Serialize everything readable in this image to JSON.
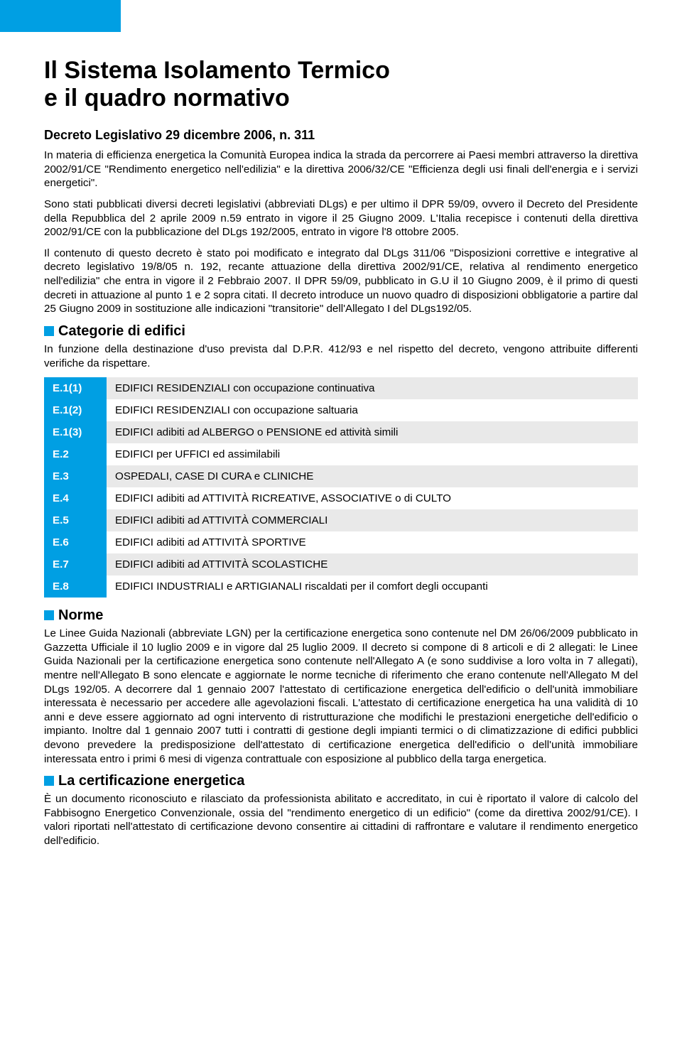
{
  "colors": {
    "accent": "#009fe3",
    "zebra_odd": "#e9e9e9",
    "zebra_even": "#ffffff",
    "text": "#000000",
    "background": "#ffffff"
  },
  "typography": {
    "h1_fontsize": 34,
    "subtitle_fontsize": 18,
    "body_fontsize": 15.2,
    "section_head_fontsize": 20,
    "font_family": "Arial"
  },
  "title_line1": "Il Sistema Isolamento Termico",
  "title_line2": "e il quadro normativo",
  "subtitle": "Decreto Legislativo 29 dicembre 2006, n. 311",
  "intro_p1": "In materia di efficienza energetica la Comunità Europea indica la strada da percorrere ai Paesi membri attraverso la direttiva 2002/91/CE \"Rendimento energetico nell'edilizia\" e la direttiva 2006/32/CE \"Efficienza degli usi finali dell'energia e i servizi energetici\".",
  "intro_p2": "Sono stati pubblicati diversi decreti legislativi (abbreviati DLgs) e per ultimo il DPR 59/09, ovvero il Decreto del Presidente della Repubblica del 2 aprile 2009 n.59 entrato in vigore il 25 Giugno 2009. L'Italia recepisce i contenuti della direttiva 2002/91/CE con la pubblicazione del DLgs 192/2005, entrato in vigore l'8 ottobre 2005.",
  "intro_p3": "Il contenuto di questo decreto è stato poi modificato e integrato dal DLgs 311/06 \"Disposizioni correttive e integrative al decreto legislativo 19/8/05 n. 192, recante attuazione della direttiva 2002/91/CE, relativa al rendimento energetico nell'edilizia\" che entra in vigore il 2 Febbraio 2007. Il DPR 59/09, pubblicato in G.U il 10 Giugno 2009, è il primo di questi decreti in attuazione al punto 1 e 2 sopra citati. Il decreto introduce un nuovo quadro di disposizioni obbligatorie a partire dal 25 Giugno 2009 in sostituzione alle indicazioni \"transitorie\" dell'Allegato I del DLgs192/05.",
  "section_cat_title": "Categorie di edifici",
  "section_cat_intro": "In funzione della destinazione d'uso prevista dal D.P.R. 412/93 e nel rispetto del decreto, vengono attribuite differenti verifiche da rispettare.",
  "categories": [
    {
      "code": "E.1(1)",
      "desc": "EDIFICI RESIDENZIALI con occupazione continuativa"
    },
    {
      "code": "E.1(2)",
      "desc": "EDIFICI RESIDENZIALI con occupazione saltuaria"
    },
    {
      "code": "E.1(3)",
      "desc": "EDIFICI adibiti ad ALBERGO o PENSIONE ed attività simili"
    },
    {
      "code": "E.2",
      "desc": "EDIFICI per UFFICI ed assimilabili"
    },
    {
      "code": "E.3",
      "desc": "OSPEDALI, CASE DI CURA e CLINICHE"
    },
    {
      "code": "E.4",
      "desc": "EDIFICI adibiti ad ATTIVITÀ RICREATIVE, ASSOCIATIVE o di CULTO"
    },
    {
      "code": "E.5",
      "desc": "EDIFICI adibiti ad ATTIVITÀ COMMERCIALI"
    },
    {
      "code": "E.6",
      "desc": "EDIFICI adibiti ad ATTIVITÀ SPORTIVE"
    },
    {
      "code": "E.7",
      "desc": "EDIFICI adibiti ad ATTIVITÀ SCOLASTICHE"
    },
    {
      "code": "E.8",
      "desc": "EDIFICI INDUSTRIALI e ARTIGIANALI riscaldati per il comfort degli occupanti"
    }
  ],
  "section_norme_title": "Norme",
  "section_norme_body": "Le Linee Guida Nazionali (abbreviate LGN) per la certificazione energetica sono contenute nel DM 26/06/2009 pubblicato in Gazzetta Ufficiale il 10 luglio 2009 e in vigore dal 25 luglio 2009. Il decreto si compone di 8 articoli e di 2 allegati: le Linee Guida Nazionali per la certificazione energetica sono contenute nell'Allegato A (e sono suddivise a loro volta in 7 allegati), mentre nell'Allegato B sono elencate e aggiornate le norme tecniche di riferimento che erano contenute nell'Allegato M del DLgs 192/05. A decorrere dal 1 gennaio 2007 l'attestato di certificazione energetica dell'edificio o dell'unità immobiliare interessata è necessario per accedere alle agevolazioni fiscali. L'attestato di certificazione energetica ha una validità di 10 anni e deve essere aggiornato ad ogni intervento di ristrutturazione che modifichi le prestazioni energetiche dell'edificio o impianto. Inoltre dal 1 gennaio 2007 tutti i contratti di gestione degli impianti termici o di climatizzazione di edifici pubblici devono prevedere la predisposizione dell'attestato di certificazione energetica dell'edificio o dell'unità immobiliare interessata entro i primi 6 mesi di vigenza contrattuale con esposizione al pubblico della targa energetica.",
  "section_cert_title": "La certificazione energetica",
  "section_cert_body": "È un documento riconosciuto e rilasciato da professionista abilitato e accreditato, in cui è riportato il valore di calcolo del Fabbisogno Energetico Convenzionale, ossia del \"rendimento energetico di un edificio\" (come da direttiva 2002/91/CE). I valori riportati nell'attestato di certificazione devono consentire ai cittadini di raffrontare e valutare il rendimento energetico dell'edificio."
}
